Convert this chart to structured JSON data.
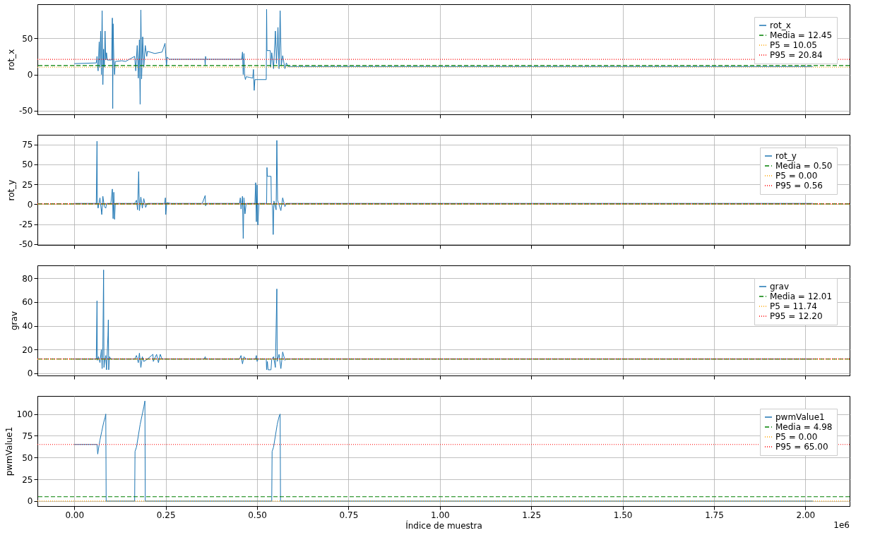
{
  "chart_data": [
    {
      "type": "line",
      "ylabel": "rot_x",
      "xlim": [
        -0.101,
        2.121
      ],
      "xticks": [
        0,
        0.25,
        0.5,
        0.75,
        1,
        1.25,
        1.5,
        1.75,
        2
      ],
      "ylim": [
        -55,
        97
      ],
      "yticks": [
        -50,
        0,
        50
      ],
      "tick_labels": "y",
      "grid": true,
      "legend": "top right",
      "series": [
        {
          "name": "rot_x",
          "color": "#1f77b4",
          "x": [
            0,
            0.06,
            0.062,
            0.065,
            0.068,
            0.07,
            0.072,
            0.074,
            0.076,
            0.078,
            0.08,
            0.082,
            0.084,
            0.086,
            0.088,
            0.09,
            0.102,
            0.104,
            0.105,
            0.106,
            0.108,
            0.11,
            0.112,
            0.13,
            0.14,
            0.165,
            0.168,
            0.172,
            0.175,
            0.178,
            0.18,
            0.182,
            0.184,
            0.187,
            0.19,
            0.194,
            0.198,
            0.2,
            0.22,
            0.24,
            0.248,
            0.25,
            0.252,
            0.254,
            0.26,
            0.3,
            0.357,
            0.358,
            0.359,
            0.36,
            0.44,
            0.458,
            0.46,
            0.462,
            0.464,
            0.466,
            0.468,
            0.47,
            0.48,
            0.488,
            0.49,
            0.492,
            0.494,
            0.525,
            0.526,
            0.527,
            0.536,
            0.537,
            0.54,
            0.545,
            0.55,
            0.553,
            0.557,
            0.56,
            0.563,
            0.566,
            0.57,
            0.576,
            0.58,
            0.585,
            0.6,
            1.0,
            1.5,
            2.02
          ],
          "values": [
            15,
            16,
            25,
            5,
            45,
            10,
            60,
            0,
            88,
            -14,
            35,
            10,
            60,
            20,
            30,
            20,
            20,
            78,
            -47,
            70,
            22,
            0,
            18,
            19,
            18,
            25,
            5,
            40,
            -5,
            48,
            -41,
            89,
            -6,
            52,
            10,
            40,
            25,
            32,
            29,
            31,
            43,
            28,
            12,
            24,
            21,
            21,
            21,
            13,
            25,
            21,
            21,
            21,
            31,
            0,
            29,
            -2,
            -7,
            -3,
            -4,
            -5,
            7,
            -22,
            -7,
            -7,
            90,
            33,
            33,
            10,
            30,
            8,
            60,
            15,
            65,
            8,
            88,
            12,
            26,
            8,
            16,
            11,
            11,
            11,
            11,
            11
          ]
        }
      ],
      "ref_lines": [
        {
          "axis": "y",
          "value": 12.45,
          "label": "Media = 12.45",
          "color": "#008000",
          "line_style": "dashed"
        },
        {
          "axis": "y",
          "value": 10.05,
          "label": "P5 = 10.05",
          "color": "#ffa500",
          "line_style": "dotted"
        },
        {
          "axis": "y",
          "value": 20.84,
          "label": "P95 = 20.84",
          "color": "#ff0000",
          "line_style": "dotted"
        }
      ]
    },
    {
      "type": "line",
      "ylabel": "rot_y",
      "xlim": [
        -0.101,
        2.121
      ],
      "xticks": [
        0,
        0.25,
        0.5,
        0.75,
        1,
        1.25,
        1.5,
        1.75,
        2
      ],
      "ylim": [
        -51,
        87
      ],
      "yticks": [
        -50,
        -25,
        0,
        25,
        50,
        75
      ],
      "tick_labels": "y",
      "grid": true,
      "legend": "top right",
      "series": [
        {
          "name": "rot_y",
          "color": "#1f77b4",
          "x": [
            0,
            0.06,
            0.062,
            0.063,
            0.065,
            0.07,
            0.075,
            0.078,
            0.082,
            0.086,
            0.088,
            0.1,
            0.104,
            0.106,
            0.108,
            0.11,
            0.112,
            0.165,
            0.17,
            0.173,
            0.176,
            0.178,
            0.182,
            0.186,
            0.19,
            0.195,
            0.2,
            0.247,
            0.249,
            0.25,
            0.253,
            0.263,
            0.35,
            0.358,
            0.359,
            0.361,
            0.452,
            0.454,
            0.456,
            0.46,
            0.462,
            0.464,
            0.467,
            0.47,
            0.494,
            0.496,
            0.498,
            0.5,
            0.502,
            0.505,
            0.526,
            0.527,
            0.528,
            0.538,
            0.539,
            0.542,
            0.544,
            0.546,
            0.552,
            0.554,
            0.556,
            0.565,
            0.57,
            0.576,
            0.58,
            0.585,
            2.02
          ],
          "values": [
            1,
            1,
            79,
            1,
            -5,
            8,
            -13,
            10,
            -3,
            -5,
            1,
            1,
            19,
            -18,
            15,
            -19,
            1,
            1,
            5,
            -7,
            41,
            -8,
            9,
            -5,
            7,
            -4,
            1,
            1,
            8,
            -13,
            2,
            1,
            1,
            11,
            -2,
            1,
            1,
            8,
            -6,
            10,
            -43,
            8,
            -12,
            1,
            1,
            27,
            -22,
            24,
            -26,
            1,
            1,
            46,
            35,
            35,
            1,
            -2,
            -38,
            4,
            -7,
            80,
            5,
            -8,
            8,
            -3,
            1,
            1,
            1
          ]
        }
      ],
      "ref_lines": [
        {
          "axis": "y",
          "value": 0.5,
          "label": "Media = 0.50",
          "color": "#008000",
          "line_style": "dashed"
        },
        {
          "axis": "y",
          "value": 0.0,
          "label": "P5 = 0.00",
          "color": "#ffa500",
          "line_style": "dotted"
        },
        {
          "axis": "y",
          "value": 0.56,
          "label": "P95 = 0.56",
          "color": "#ff0000",
          "line_style": "dotted"
        }
      ]
    },
    {
      "type": "line",
      "ylabel": "grav",
      "xlim": [
        -0.101,
        2.121
      ],
      "xticks": [
        0,
        0.25,
        0.5,
        0.75,
        1,
        1.25,
        1.5,
        1.75,
        2
      ],
      "ylim": [
        -1.8,
        90.8
      ],
      "yticks": [
        0,
        20,
        40,
        60,
        80
      ],
      "tick_labels": "y",
      "grid": true,
      "legend": "top right",
      "series": [
        {
          "name": "grav",
          "color": "#1f77b4",
          "x": [
            0,
            0.06,
            0.062,
            0.063,
            0.066,
            0.07,
            0.074,
            0.076,
            0.078,
            0.08,
            0.081,
            0.084,
            0.086,
            0.088,
            0.092,
            0.093,
            0.094,
            0.096,
            0.1,
            0.165,
            0.17,
            0.175,
            0.178,
            0.182,
            0.186,
            0.19,
            0.2,
            0.215,
            0.216,
            0.225,
            0.23,
            0.235,
            0.24,
            0.3,
            0.355,
            0.358,
            0.36,
            0.452,
            0.456,
            0.46,
            0.464,
            0.47,
            0.495,
            0.498,
            0.5,
            0.503,
            0.525,
            0.526,
            0.528,
            0.53,
            0.538,
            0.54,
            0.545,
            0.55,
            0.554,
            0.555,
            0.56,
            0.565,
            0.57,
            0.576,
            0.58,
            2.02
          ],
          "values": [
            12,
            12,
            61,
            11,
            14,
            9,
            20,
            4,
            22,
            87,
            5,
            12,
            15,
            3,
            32,
            45,
            3,
            14,
            12,
            12,
            15,
            9,
            17,
            5,
            14,
            10,
            12,
            16,
            10,
            16,
            9,
            16,
            12,
            12,
            12,
            14,
            12,
            12,
            15,
            8,
            14,
            12,
            12,
            15,
            10,
            12,
            12,
            3,
            10,
            3,
            3,
            12,
            14,
            5,
            71,
            10,
            16,
            4,
            18,
            11,
            12,
            12
          ]
        }
      ],
      "ref_lines": [
        {
          "axis": "y",
          "value": 12.01,
          "label": "Media = 12.01",
          "color": "#008000",
          "line_style": "dashed"
        },
        {
          "axis": "y",
          "value": 11.74,
          "label": "P5 = 11.74",
          "color": "#ffa500",
          "line_style": "dotted"
        },
        {
          "axis": "y",
          "value": 12.2,
          "label": "P95 = 12.20",
          "color": "#ff0000",
          "line_style": "dotted"
        }
      ]
    },
    {
      "type": "line",
      "ylabel": "pwmValue1",
      "xlabel": "Índice de muestra",
      "annotations": [
        "1e6"
      ],
      "xlim": [
        -0.101,
        2.121
      ],
      "xticks": [
        {
          "value": 0,
          "label": "0.00"
        },
        0.25,
        {
          "value": 0.5,
          "label": "0.50"
        },
        0.75,
        {
          "value": 1,
          "label": "1.00"
        },
        1.25,
        {
          "value": 1.5,
          "label": "1.50"
        },
        1.75,
        {
          "value": 2,
          "label": "2.00"
        }
      ],
      "ylim": [
        -5.75,
        120.75
      ],
      "yticks": [
        0,
        25,
        50,
        75,
        100
      ],
      "grid": true,
      "legend": "top right",
      "series": [
        {
          "name": "pwmValue1",
          "color": "#1f77b4",
          "x": [
            0,
            0.062,
            0.064,
            0.066,
            0.07,
            0.075,
            0.08,
            0.084,
            0.086,
            0.087,
            0.165,
            0.166,
            0.17,
            0.175,
            0.18,
            0.185,
            0.19,
            0.193,
            0.194,
            0.54,
            0.541,
            0.545,
            0.55,
            0.555,
            0.56,
            0.563,
            0.564,
            2.02
          ],
          "values": [
            65,
            65,
            54,
            60,
            70,
            80,
            90,
            96,
            100,
            0,
            0,
            57,
            62,
            75,
            88,
            98,
            108,
            115,
            0,
            0,
            57,
            62,
            75,
            88,
            97,
            100,
            0,
            0
          ]
        }
      ],
      "ref_lines": [
        {
          "axis": "y",
          "value": 4.98,
          "label": "Media = 4.98",
          "color": "#008000",
          "line_style": "dashed"
        },
        {
          "axis": "y",
          "value": 0.0,
          "label": "P5 = 0.00",
          "color": "#ffa500",
          "line_style": "dotted"
        },
        {
          "axis": "y",
          "value": 65.0,
          "label": "P95 = 65.00",
          "color": "#ff0000",
          "line_style": "dotted"
        }
      ]
    }
  ]
}
